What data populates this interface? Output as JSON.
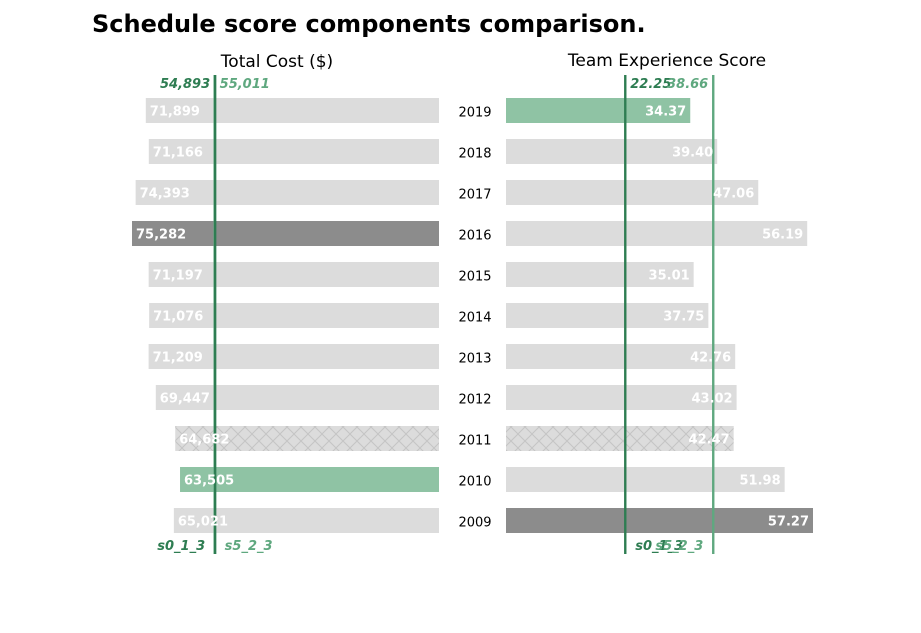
{
  "chart_data": {
    "type": "bar",
    "title": "Schedule score components comparison.",
    "categories": [
      "2019",
      "2018",
      "2017",
      "2016",
      "2015",
      "2014",
      "2013",
      "2012",
      "2011",
      "2010",
      "2009"
    ],
    "panels": [
      {
        "title": "Total Cost ($)",
        "direction": "left",
        "xlim": [
          0,
          75282
        ],
        "values": [
          71899,
          71166,
          74393,
          75282,
          71197,
          71076,
          71209,
          69447,
          64682,
          63505,
          65021
        ],
        "labels": [
          "71,899",
          "71,166",
          "74,393",
          "75,282",
          "71,197",
          "71,076",
          "71,209",
          "69,447",
          "64,682",
          "63,505",
          "65,021"
        ],
        "highlight": {
          "2016": "dark",
          "2010": "green",
          "2011": "hatched"
        },
        "reference_lines": [
          {
            "value": 55011,
            "top_label": "55,011",
            "bottom_label": "s5_2_3",
            "color": "#5fa87f"
          },
          {
            "value": 54893,
            "top_label": "54,893",
            "bottom_label": "s0_1_3",
            "color": "#2e7d52"
          }
        ]
      },
      {
        "title": "Team Experience Score",
        "direction": "right",
        "xlim": [
          0,
          57.27
        ],
        "values": [
          34.37,
          39.4,
          47.06,
          56.19,
          35.01,
          37.75,
          42.76,
          43.02,
          42.47,
          51.98,
          57.27
        ],
        "labels": [
          "34.37",
          "39.40",
          "47.06",
          "56.19",
          "35.01",
          "37.75",
          "42.76",
          "43.02",
          "42.47",
          "51.98",
          "57.27"
        ],
        "highlight": {
          "2009": "dark",
          "2019": "green",
          "2011": "hatched"
        },
        "reference_lines": [
          {
            "value": 22.25,
            "top_label": "22.25",
            "bottom_label": "s0_1_3",
            "color": "#2e7d52"
          },
          {
            "value": 38.66,
            "top_label": "38.66",
            "bottom_label": "s5_2_3",
            "color": "#5fa87f"
          }
        ]
      }
    ],
    "colors": {
      "default": "#dcdcdc",
      "dark": "#8c8c8c",
      "green": "#8fc3a4",
      "hatch": "#c4c4c4"
    }
  }
}
